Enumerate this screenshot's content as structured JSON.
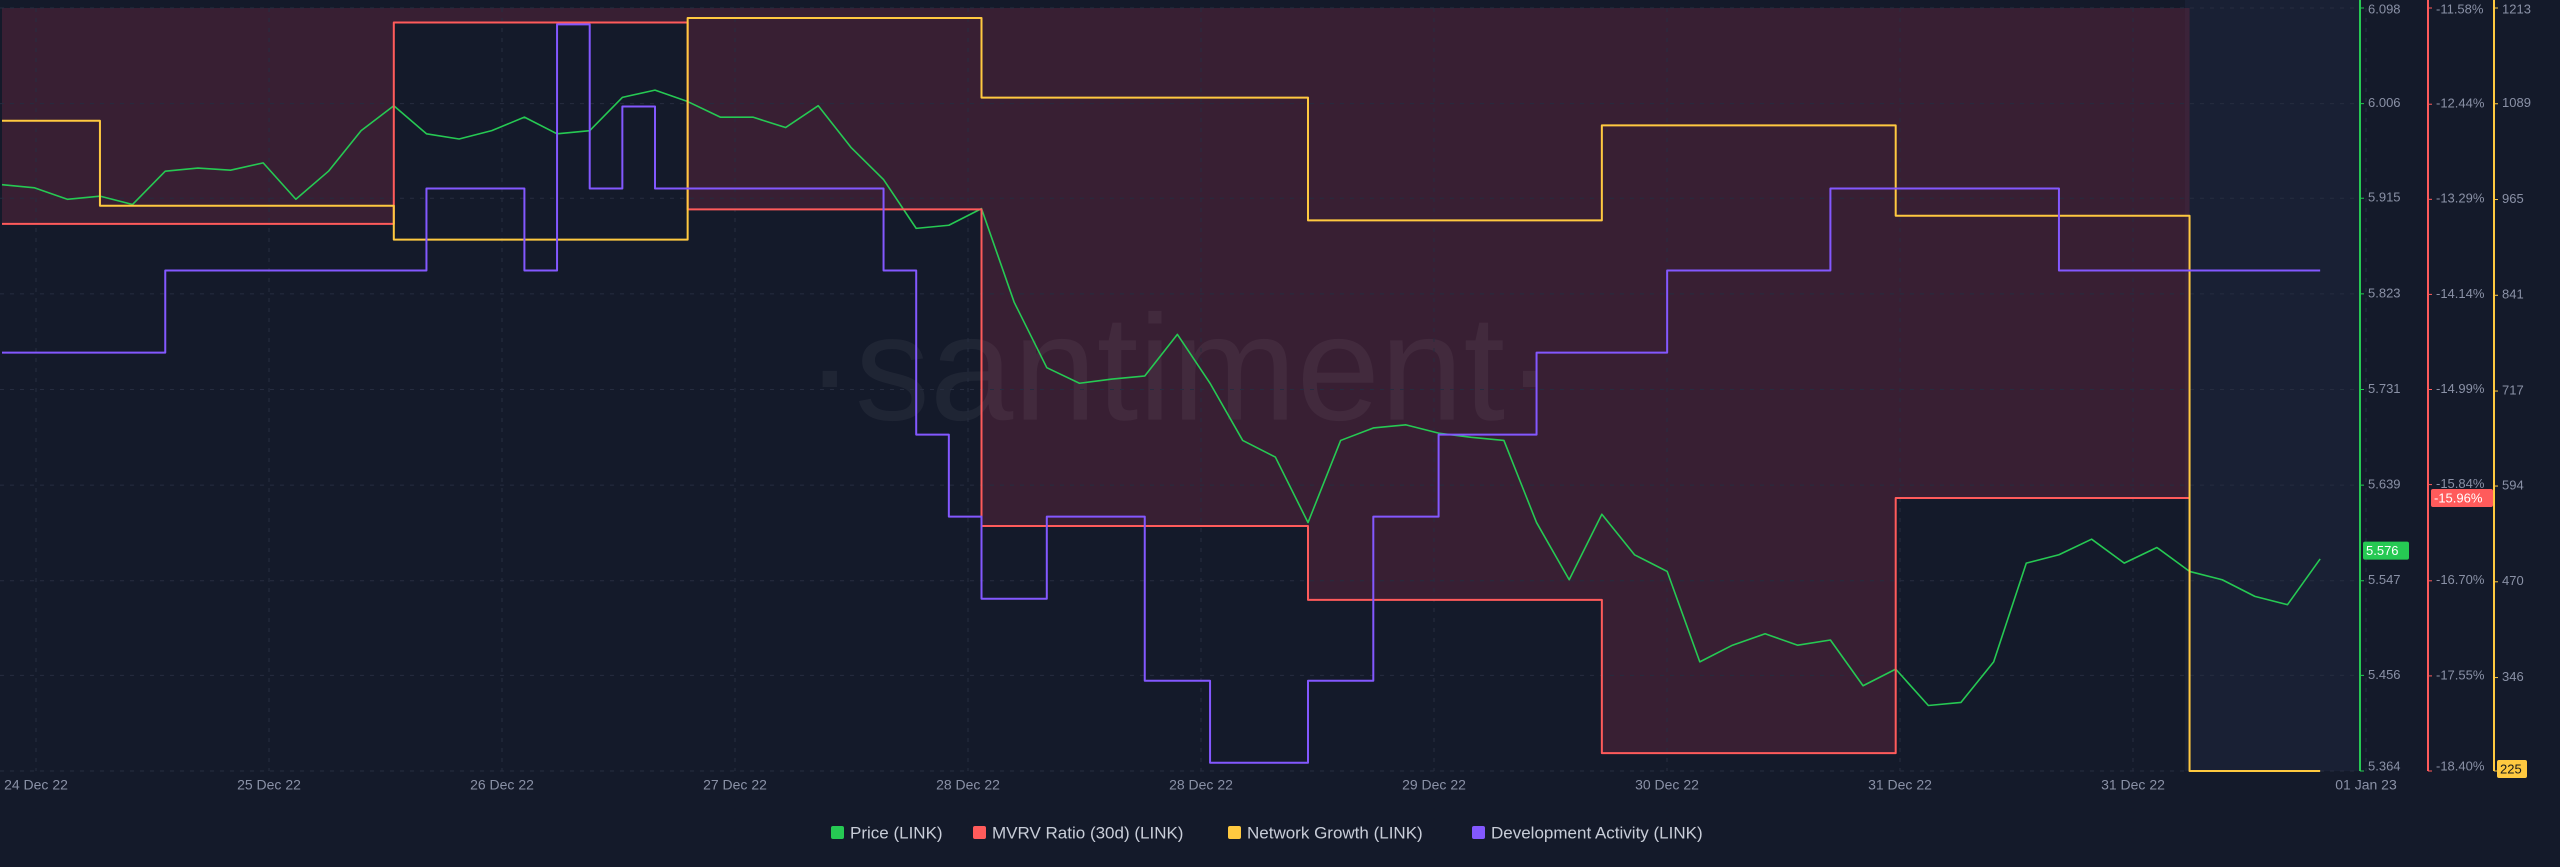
{
  "chart_data": {
    "type": "line",
    "watermark": "·santiment·",
    "x_labels": [
      "24 Dec 22",
      "25 Dec 22",
      "26 Dec 22",
      "27 Dec 22",
      "28 Dec 22",
      "28 Dec 22",
      "29 Dec 22",
      "30 Dec 22",
      "31 Dec 22",
      "31 Dec 22",
      "01 Jan 23"
    ],
    "axes": [
      {
        "id": "price",
        "color": "#26c953",
        "ylim": [
          5.364,
          6.098
        ],
        "yticks": [
          5.364,
          5.456,
          5.547,
          5.639,
          5.731,
          5.823,
          5.915,
          6.006,
          6.098
        ]
      },
      {
        "id": "mvrv",
        "color": "#ff5b5b",
        "ylim": [
          -18.4,
          -11.58
        ],
        "yticks": [
          {
            "value": -18.4,
            "label": "-18.40%"
          },
          {
            "value": -17.55,
            "label": "-17.55%"
          },
          {
            "value": -16.7,
            "label": "-16.70%"
          },
          {
            "value": -15.84,
            "label": "-15.84%"
          },
          {
            "value": -14.99,
            "label": "-14.99%"
          },
          {
            "value": -14.14,
            "label": "-14.14%"
          },
          {
            "value": -13.29,
            "label": "-13.29%"
          },
          {
            "value": -12.44,
            "label": "-12.44%"
          },
          {
            "value": -11.58,
            "label": "-11.58%"
          }
        ]
      },
      {
        "id": "network",
        "color": "#ffc940",
        "ylim": [
          225,
          1213
        ],
        "yticks": [
          225,
          346,
          470,
          594,
          717,
          841,
          965,
          1089,
          1213
        ]
      },
      {
        "id": "dev",
        "color": "#8358ff",
        "ylim": [
          0.9,
          10.2
        ]
      }
    ],
    "series": [
      {
        "name": "Price (LINK)",
        "color": "#26c953",
        "axis": "price",
        "step": false,
        "badge": 5.576,
        "values": [
          5.928,
          5.925,
          5.914,
          5.917,
          5.909,
          5.941,
          5.944,
          5.942,
          5.949,
          5.914,
          5.941,
          5.98,
          6.004,
          5.977,
          5.972,
          5.98,
          5.993,
          5.977,
          5.98,
          6.012,
          6.019,
          6.008,
          5.993,
          5.993,
          5.983,
          6.004,
          5.964,
          5.933,
          5.886,
          5.889,
          5.905,
          5.815,
          5.752,
          5.737,
          5.741,
          5.744,
          5.784,
          5.737,
          5.682,
          5.666,
          5.603,
          5.682,
          5.694,
          5.697,
          5.689,
          5.685,
          5.682,
          5.603,
          5.548,
          5.611,
          5.572,
          5.556,
          5.469,
          5.485,
          5.496,
          5.485,
          5.49,
          5.446,
          5.462,
          5.427,
          5.43,
          5.469,
          5.564,
          5.572,
          5.587,
          5.564,
          5.579,
          5.556,
          5.548,
          5.532,
          5.524,
          5.568
        ]
      },
      {
        "name": "MVRV Ratio (30d) (LINK)",
        "color": "#ff5b5b",
        "axis": "mvrv",
        "step": true,
        "fill_above": true,
        "badge": {
          "value": -15.96,
          "label": "-15.96%"
        },
        "values": [
          -13.51,
          -13.51,
          -13.51,
          -13.51,
          -13.51,
          -13.51,
          -13.51,
          -13.51,
          -13.51,
          -13.51,
          -13.51,
          -13.51,
          -11.71,
          -11.71,
          -11.71,
          -11.71,
          -11.71,
          -11.71,
          -11.71,
          -11.71,
          -11.71,
          -13.38,
          -13.38,
          -13.38,
          -13.38,
          -13.38,
          -13.38,
          -13.38,
          -13.38,
          -13.38,
          -16.21,
          -16.21,
          -16.21,
          -16.21,
          -16.21,
          -16.21,
          -16.21,
          -16.21,
          -16.21,
          -16.21,
          -16.87,
          -16.87,
          -16.87,
          -16.87,
          -16.87,
          -16.87,
          -16.87,
          -16.87,
          -16.87,
          -18.24,
          -18.24,
          -18.24,
          -18.24,
          -18.24,
          -18.24,
          -18.24,
          -18.24,
          -18.24,
          -15.96,
          -15.96,
          -15.96,
          -15.96,
          -15.96,
          -15.96,
          -15.96,
          -15.96,
          -15.96,
          null,
          null,
          null,
          null,
          null
        ]
      },
      {
        "name": "Network Growth (LINK)",
        "color": "#ffc940",
        "axis": "network",
        "step": true,
        "badge": 225,
        "values": [
          1067,
          1067,
          1067,
          957,
          957,
          957,
          957,
          957,
          957,
          957,
          957,
          957,
          913,
          913,
          913,
          913,
          913,
          913,
          913,
          913,
          913,
          1200,
          1200,
          1200,
          1200,
          1200,
          1200,
          1200,
          1200,
          1200,
          1097,
          1097,
          1097,
          1097,
          1097,
          1097,
          1097,
          1097,
          1097,
          1097,
          938,
          938,
          938,
          938,
          938,
          938,
          938,
          938,
          938,
          1061,
          1061,
          1061,
          1061,
          1061,
          1061,
          1061,
          1061,
          1061,
          944,
          944,
          944,
          944,
          944,
          944,
          944,
          944,
          944,
          225,
          225,
          225,
          225,
          225
        ]
      },
      {
        "name": "Development Activity (LINK)",
        "color": "#8358ff",
        "axis": "dev",
        "step": true,
        "values": [
          6,
          6,
          6,
          6,
          6,
          7,
          7,
          7,
          7,
          7,
          7,
          7,
          7,
          8,
          8,
          8,
          7,
          10,
          8,
          9,
          8,
          8,
          8,
          8,
          8,
          8,
          8,
          7,
          5,
          4,
          3,
          3,
          4,
          4,
          4,
          2,
          2,
          1,
          1,
          1,
          2,
          2,
          4,
          4,
          5,
          5,
          5,
          6,
          6,
          6,
          6,
          7,
          7,
          7,
          7,
          7,
          8,
          8,
          8,
          8,
          8,
          8,
          8,
          7,
          7,
          7,
          7,
          7,
          7,
          7,
          7,
          7
        ]
      }
    ]
  }
}
